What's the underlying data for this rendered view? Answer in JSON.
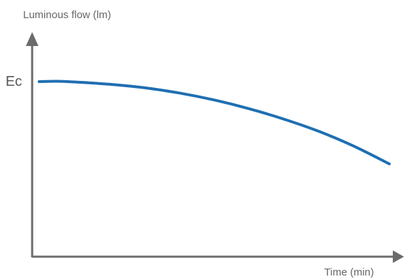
{
  "chart_data": {
    "type": "line",
    "title": "",
    "ylabel": "Luminous flow (lm)",
    "xlabel": "Time (min)",
    "y_tick_labels": [
      {
        "label": "Ec",
        "value": 1.0
      }
    ],
    "xlim": [
      0,
      100
    ],
    "ylim": [
      0,
      1.2
    ],
    "grid": false,
    "series": [
      {
        "color": "#1f6fb2",
        "x": [
          0,
          5,
          10,
          20,
          30,
          40,
          50,
          60,
          70,
          80,
          90,
          100
        ],
        "y": [
          1.0,
          1.002,
          0.998,
          0.985,
          0.965,
          0.935,
          0.895,
          0.845,
          0.785,
          0.715,
          0.63,
          0.53
        ]
      }
    ],
    "axis_color": "#6b6b6b"
  }
}
